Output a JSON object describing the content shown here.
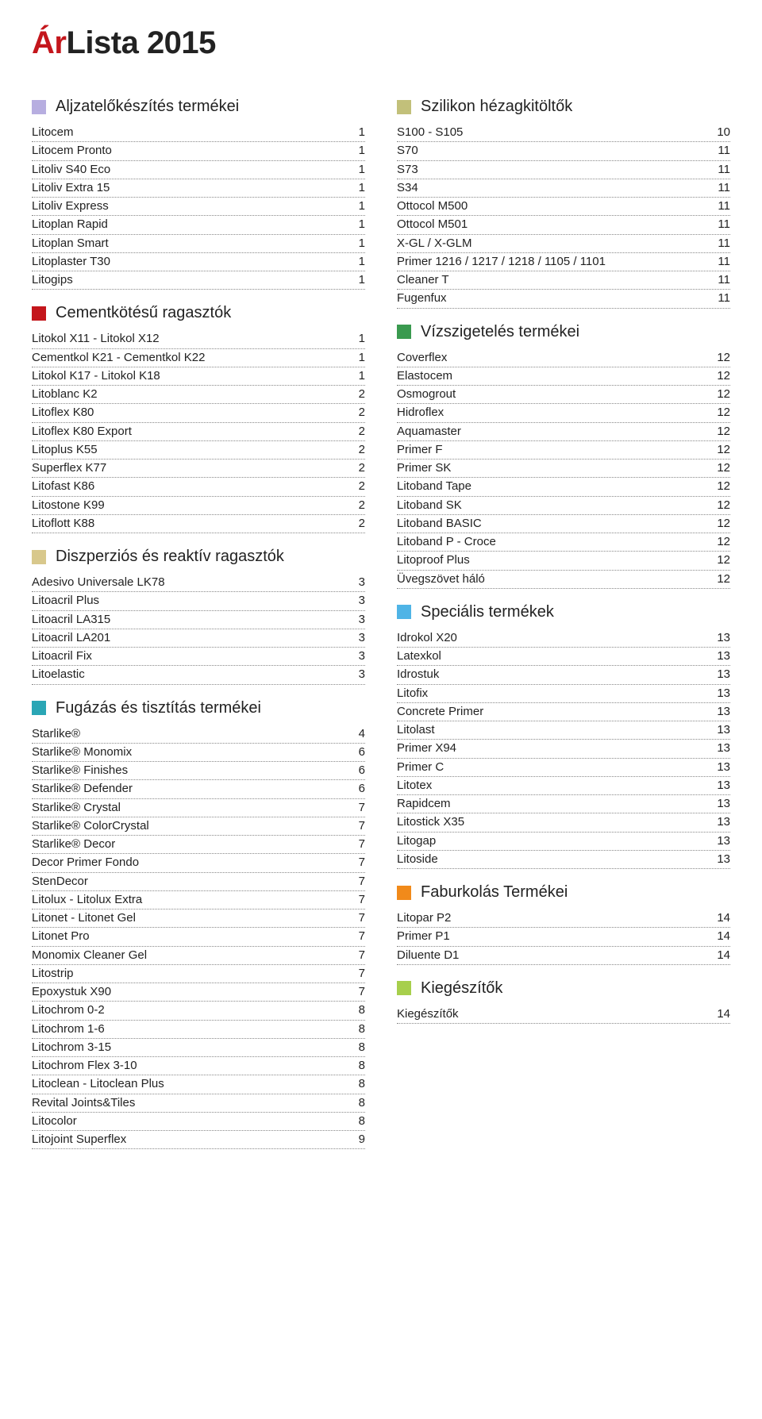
{
  "title": {
    "ar": "Ár",
    "lista": "Lista",
    "year": "2015"
  },
  "colors": {
    "lilac": "#b7aee0",
    "red": "#c4161c",
    "tan": "#d8c88c",
    "teal": "#2aa6b5",
    "khaki": "#c2c07a",
    "green": "#3a9a4f",
    "blue": "#4fb4e6",
    "orange": "#f18a1a",
    "lime": "#a7cf4c"
  },
  "leftSections": [
    {
      "color": "#b7aee0",
      "title": "Aljzatelőkészítés termékei",
      "items": [
        [
          "Litocem",
          "1"
        ],
        [
          "Litocem Pronto",
          "1"
        ],
        [
          "Litoliv S40 Eco",
          "1"
        ],
        [
          "Litoliv Extra 15",
          "1"
        ],
        [
          "Litoliv Express",
          "1"
        ],
        [
          "Litoplan Rapid",
          "1"
        ],
        [
          "Litoplan Smart",
          "1"
        ],
        [
          "Litoplaster T30",
          "1"
        ],
        [
          "Litogips",
          "1"
        ]
      ]
    },
    {
      "color": "#c4161c",
      "title": "Cementkötésű ragasztók",
      "items": [
        [
          "Litokol X11 - Litokol X12",
          "1"
        ],
        [
          "Cementkol K21 - Cementkol K22",
          "1"
        ],
        [
          "Litokol K17 - Litokol K18",
          "1"
        ],
        [
          "Litoblanc K2",
          "2"
        ],
        [
          "Litoflex K80",
          "2"
        ],
        [
          "Litoflex K80 Export",
          "2"
        ],
        [
          "Litoplus K55",
          "2"
        ],
        [
          "Superflex K77",
          "2"
        ],
        [
          "Litofast K86",
          "2"
        ],
        [
          "Litostone K99",
          "2"
        ],
        [
          "Litoflott K88",
          "2"
        ]
      ]
    },
    {
      "color": "#d8c88c",
      "title": "Diszperziós és reaktív ragasztók",
      "items": [
        [
          "Adesivo Universale LK78",
          "3"
        ],
        [
          "Litoacril Plus",
          "3"
        ],
        [
          "Litoacril LA315",
          "3"
        ],
        [
          "Litoacril LA201",
          "3"
        ],
        [
          "Litoacril Fix",
          "3"
        ],
        [
          "Litoelastic",
          "3"
        ]
      ]
    },
    {
      "color": "#2aa6b5",
      "title": "Fugázás és tisztítás termékei",
      "items": [
        [
          "Starlike®",
          "4"
        ],
        [
          "Starlike® Monomix",
          "6"
        ],
        [
          "Starlike® Finishes",
          "6"
        ],
        [
          "Starlike® Defender",
          "6"
        ],
        [
          "Starlike® Crystal",
          "7"
        ],
        [
          "Starlike® ColorCrystal",
          "7"
        ],
        [
          "Starlike® Decor",
          "7"
        ],
        [
          "Decor Primer Fondo",
          "7"
        ],
        [
          "StenDecor",
          "7"
        ],
        [
          "Litolux - Litolux Extra",
          "7"
        ],
        [
          "Litonet - Litonet Gel",
          "7"
        ],
        [
          "Litonet Pro",
          "7"
        ],
        [
          "Monomix Cleaner Gel",
          "7"
        ],
        [
          "Litostrip",
          "7"
        ],
        [
          "Epoxystuk X90",
          "7"
        ],
        [
          "Litochrom 0-2",
          "8"
        ],
        [
          "Litochrom 1-6",
          "8"
        ],
        [
          "Litochrom 3-15",
          "8"
        ],
        [
          "Litochrom Flex 3-10",
          "8"
        ],
        [
          "Litoclean - Litoclean Plus",
          "8"
        ],
        [
          "Revital Joints&Tiles",
          "8"
        ],
        [
          "Litocolor",
          "8"
        ],
        [
          "Litojoint Superflex",
          "9"
        ]
      ]
    }
  ],
  "rightSections": [
    {
      "color": "#c2c07a",
      "title": "Szilikon hézagkitöltők",
      "items": [
        [
          "S100 - S105",
          "10"
        ],
        [
          "S70",
          "11"
        ],
        [
          "S73",
          "11"
        ],
        [
          "S34",
          "11"
        ],
        [
          "Ottocol M500",
          "11"
        ],
        [
          "Ottocol M501",
          "11"
        ],
        [
          "X-GL / X-GLM",
          "11"
        ],
        [
          "Primer 1216 / 1217 / 1218 / 1105 / 1101",
          "11"
        ],
        [
          "Cleaner T",
          "11"
        ],
        [
          "Fugenfux",
          "11"
        ]
      ]
    },
    {
      "color": "#3a9a4f",
      "title": "Vízszigetelés termékei",
      "items": [
        [
          "Coverflex",
          "12"
        ],
        [
          "Elastocem",
          "12"
        ],
        [
          "Osmogrout",
          "12"
        ],
        [
          "Hidroflex",
          "12"
        ],
        [
          "Aquamaster",
          "12"
        ],
        [
          "Primer F",
          "12"
        ],
        [
          "Primer SK",
          "12"
        ],
        [
          "Litoband Tape",
          "12"
        ],
        [
          "Litoband SK",
          "12"
        ],
        [
          "Litoband BASIC",
          "12"
        ],
        [
          "Litoband P - Croce",
          "12"
        ],
        [
          "Litoproof Plus",
          "12"
        ],
        [
          "Üvegszövet háló",
          "12"
        ]
      ]
    },
    {
      "color": "#4fb4e6",
      "title": "Speciális termékek",
      "items": [
        [
          "Idrokol X20",
          "13"
        ],
        [
          "Latexkol",
          "13"
        ],
        [
          "Idrostuk",
          "13"
        ],
        [
          "Litofix",
          "13"
        ],
        [
          "Concrete Primer",
          "13"
        ],
        [
          "Litolast",
          "13"
        ],
        [
          "Primer X94",
          "13"
        ],
        [
          "Primer C",
          "13"
        ],
        [
          "Litotex",
          "13"
        ],
        [
          "Rapidcem",
          "13"
        ],
        [
          "Litostick X35",
          "13"
        ],
        [
          "Litogap",
          "13"
        ],
        [
          "Litoside",
          "13"
        ]
      ]
    },
    {
      "color": "#f18a1a",
      "title": "Faburkolás Termékei",
      "items": [
        [
          "Litopar P2",
          "14"
        ],
        [
          "Primer P1",
          "14"
        ],
        [
          "Diluente D1",
          "14"
        ]
      ]
    },
    {
      "color": "#a7cf4c",
      "title": "Kiegészítők",
      "items": [
        [
          "Kiegészítők",
          "14"
        ]
      ]
    }
  ]
}
